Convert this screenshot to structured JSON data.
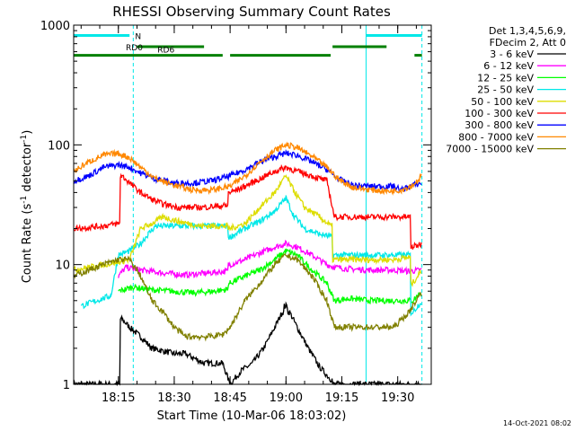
{
  "chart_data": {
    "type": "line",
    "title": "RHESSI Observing Summary Count Rates",
    "xlabel": "Start Time (10-Mar-06 18:03:02)",
    "ylabel": "Count Rate (s",
    "ylabel_sup1": "-1",
    "ylabel_mid": " detector",
    "ylabel_sup2": "-1",
    "ylabel_end": ")",
    "yscale": "log",
    "xlim_minutes": [
      0,
      96
    ],
    "ylim": [
      1,
      1000
    ],
    "x_ticks": [
      {
        "minute": 12,
        "label": "18:15"
      },
      {
        "minute": 27,
        "label": "18:30"
      },
      {
        "minute": 42,
        "label": "18:45"
      },
      {
        "minute": 57,
        "label": "19:00"
      },
      {
        "minute": 72,
        "label": "19:15"
      },
      {
        "minute": 87,
        "label": "19:30"
      }
    ],
    "y_ticks": [
      {
        "value": 1,
        "label": "1"
      },
      {
        "value": 10,
        "label": "10"
      },
      {
        "value": 100,
        "label": "100"
      },
      {
        "value": 1000,
        "label": "1000"
      }
    ],
    "legend_header": [
      "Det 1,3,4,5,6,9,",
      "FDecim 2, Att 0"
    ],
    "legend_position": "right",
    "footer_date": "14-Oct-2021 08:02",
    "flags": [
      {
        "name": "N",
        "color": "#00e8e8",
        "y": 820,
        "segments": [
          [
            0,
            15
          ],
          [
            78.5,
            93.5
          ]
        ]
      },
      {
        "name": "RD0",
        "color": "#008000",
        "y": 660,
        "segments": [
          [
            17,
            35
          ],
          [
            69.5,
            84
          ]
        ]
      },
      {
        "name": "RD6",
        "color": "#008000",
        "y": 560,
        "segments": [
          [
            0,
            40
          ],
          [
            42,
            69
          ],
          [
            91.5,
            93.5
          ]
        ]
      }
    ],
    "vlines": [
      {
        "minute": 0,
        "style": "solid",
        "color": "#00e8e8"
      },
      {
        "minute": 16,
        "style": "dashed",
        "color": "#00e8e8"
      },
      {
        "minute": 78.5,
        "style": "solid",
        "color": "#00e8e8"
      },
      {
        "minute": 93.5,
        "style": "dashed",
        "color": "#00e8e8"
      }
    ],
    "series": [
      {
        "name": "3 - 6 keV",
        "color": "#000000",
        "points": [
          [
            0,
            1
          ],
          [
            12,
            1
          ],
          [
            13,
            3.5
          ],
          [
            15,
            3
          ],
          [
            18,
            2.5
          ],
          [
            21,
            2
          ],
          [
            27,
            1.8
          ],
          [
            30,
            1.8
          ],
          [
            35,
            1.5
          ],
          [
            40,
            1.5
          ],
          [
            42,
            1
          ],
          [
            45,
            1.3
          ],
          [
            48,
            1.5
          ],
          [
            51,
            2
          ],
          [
            54,
            3
          ],
          [
            56,
            4
          ],
          [
            57,
            4.5
          ],
          [
            58,
            4
          ],
          [
            60,
            3
          ],
          [
            63,
            2
          ],
          [
            66,
            1.4
          ],
          [
            69,
            1.1
          ],
          [
            70,
            1
          ],
          [
            80,
            1
          ],
          [
            86,
            1
          ],
          [
            93.5,
            1
          ]
        ]
      },
      {
        "name": "6 - 12 keV",
        "color": "#ff00ff",
        "points": [
          [
            12,
            8
          ],
          [
            14,
            9.5
          ],
          [
            18,
            9
          ],
          [
            24,
            8.5
          ],
          [
            30,
            8.2
          ],
          [
            36,
            8.5
          ],
          [
            41,
            8.8
          ],
          [
            42,
            10
          ],
          [
            46,
            11
          ],
          [
            50,
            12.5
          ],
          [
            54,
            14
          ],
          [
            57,
            15
          ],
          [
            60,
            14
          ],
          [
            64,
            12
          ],
          [
            68,
            10
          ],
          [
            70,
            9.5
          ],
          [
            74,
            9.2
          ],
          [
            80,
            9
          ],
          [
            86,
            9
          ],
          [
            90,
            8.8
          ],
          [
            93.5,
            9
          ]
        ]
      },
      {
        "name": "12 - 25 keV",
        "color": "#00ff00",
        "points": [
          [
            12,
            6
          ],
          [
            16,
            6.5
          ],
          [
            20,
            6.2
          ],
          [
            26,
            6
          ],
          [
            32,
            5.8
          ],
          [
            38,
            6
          ],
          [
            41,
            6.2
          ],
          [
            42,
            7
          ],
          [
            46,
            8
          ],
          [
            50,
            9
          ],
          [
            54,
            11
          ],
          [
            57,
            13
          ],
          [
            60,
            12
          ],
          [
            64,
            9
          ],
          [
            68,
            7
          ],
          [
            70,
            5
          ],
          [
            74,
            5.2
          ],
          [
            80,
            5
          ],
          [
            86,
            5
          ],
          [
            91,
            5
          ],
          [
            93.5,
            6
          ]
        ]
      },
      {
        "name": "25 - 50 keV",
        "color": "#00e8e8",
        "points": [
          [
            2,
            4.5
          ],
          [
            10,
            5.5
          ],
          [
            12,
            12
          ],
          [
            15,
            13
          ],
          [
            18,
            15
          ],
          [
            20,
            18
          ],
          [
            22,
            21
          ],
          [
            26,
            21
          ],
          [
            32,
            21
          ],
          [
            38,
            21
          ],
          [
            41,
            21
          ],
          [
            42,
            17
          ],
          [
            46,
            20
          ],
          [
            50,
            23
          ],
          [
            54,
            28
          ],
          [
            57,
            36
          ],
          [
            59,
            26
          ],
          [
            62,
            20
          ],
          [
            66,
            18
          ],
          [
            69,
            17
          ],
          [
            70,
            12
          ],
          [
            74,
            12
          ],
          [
            80,
            12
          ],
          [
            86,
            12
          ],
          [
            90,
            12
          ],
          [
            91,
            4
          ],
          [
            93.5,
            5
          ]
        ]
      },
      {
        "name": "50 - 100 keV",
        "color": "#dddd00",
        "points": [
          [
            0,
            9
          ],
          [
            8,
            10
          ],
          [
            12,
            10.5
          ],
          [
            15,
            11
          ],
          [
            18,
            20
          ],
          [
            21,
            22
          ],
          [
            24,
            25
          ],
          [
            28,
            23
          ],
          [
            34,
            21
          ],
          [
            40,
            21
          ],
          [
            41,
            21
          ],
          [
            42,
            20
          ],
          [
            46,
            22
          ],
          [
            50,
            30
          ],
          [
            54,
            40
          ],
          [
            57,
            55
          ],
          [
            59,
            42
          ],
          [
            62,
            30
          ],
          [
            66,
            25
          ],
          [
            69,
            21
          ],
          [
            70,
            11
          ],
          [
            74,
            11
          ],
          [
            80,
            11
          ],
          [
            86,
            11
          ],
          [
            90,
            11.5
          ],
          [
            91,
            7
          ],
          [
            93.5,
            9
          ]
        ]
      },
      {
        "name": "100 - 300 keV",
        "color": "#ff0000",
        "points": [
          [
            0,
            20
          ],
          [
            8,
            21
          ],
          [
            12,
            22
          ],
          [
            13,
            55
          ],
          [
            16,
            45
          ],
          [
            18,
            40
          ],
          [
            21,
            35
          ],
          [
            24,
            32
          ],
          [
            28,
            30
          ],
          [
            34,
            30
          ],
          [
            40,
            31
          ],
          [
            41,
            31
          ],
          [
            42,
            40
          ],
          [
            46,
            45
          ],
          [
            50,
            52
          ],
          [
            54,
            60
          ],
          [
            57,
            65
          ],
          [
            60,
            60
          ],
          [
            64,
            55
          ],
          [
            68,
            50
          ],
          [
            70,
            25
          ],
          [
            74,
            25
          ],
          [
            80,
            25
          ],
          [
            86,
            25
          ],
          [
            90,
            25
          ],
          [
            91,
            14
          ],
          [
            93.5,
            15
          ]
        ]
      },
      {
        "name": "300 - 800 keV",
        "color": "#0000ff",
        "points": [
          [
            0,
            50
          ],
          [
            4,
            55
          ],
          [
            8,
            65
          ],
          [
            12,
            68
          ],
          [
            15,
            65
          ],
          [
            18,
            58
          ],
          [
            22,
            52
          ],
          [
            27,
            48
          ],
          [
            32,
            48
          ],
          [
            37,
            50
          ],
          [
            42,
            55
          ],
          [
            46,
            62
          ],
          [
            50,
            72
          ],
          [
            54,
            80
          ],
          [
            57,
            85
          ],
          [
            60,
            82
          ],
          [
            64,
            72
          ],
          [
            68,
            62
          ],
          [
            71,
            52
          ],
          [
            75,
            46
          ],
          [
            80,
            45
          ],
          [
            84,
            45
          ],
          [
            86,
            45
          ],
          [
            88,
            42
          ],
          [
            91,
            46
          ],
          [
            93.5,
            48
          ]
        ]
      },
      {
        "name": "800 - 7000 keV",
        "color": "#ff8800",
        "points": [
          [
            0,
            60
          ],
          [
            4,
            72
          ],
          [
            8,
            82
          ],
          [
            12,
            85
          ],
          [
            15,
            78
          ],
          [
            18,
            65
          ],
          [
            22,
            52
          ],
          [
            27,
            46
          ],
          [
            32,
            42
          ],
          [
            37,
            42
          ],
          [
            42,
            45
          ],
          [
            46,
            55
          ],
          [
            50,
            72
          ],
          [
            54,
            90
          ],
          [
            57,
            100
          ],
          [
            60,
            95
          ],
          [
            64,
            80
          ],
          [
            68,
            65
          ],
          [
            71,
            52
          ],
          [
            75,
            44
          ],
          [
            80,
            42
          ],
          [
            84,
            41
          ],
          [
            88,
            42
          ],
          [
            91,
            46
          ],
          [
            93.5,
            55
          ]
        ]
      },
      {
        "name": "7000 - 15000 keV",
        "color": "#808000",
        "points": [
          [
            0,
            8
          ],
          [
            4,
            9
          ],
          [
            8,
            10
          ],
          [
            12,
            11
          ],
          [
            15,
            11
          ],
          [
            18,
            8
          ],
          [
            21,
            5
          ],
          [
            24,
            4
          ],
          [
            27,
            3
          ],
          [
            30,
            2.5
          ],
          [
            36,
            2.5
          ],
          [
            40,
            2.6
          ],
          [
            42,
            3
          ],
          [
            46,
            5
          ],
          [
            50,
            7
          ],
          [
            54,
            10
          ],
          [
            57,
            12
          ],
          [
            60,
            11
          ],
          [
            64,
            8
          ],
          [
            68,
            5
          ],
          [
            70,
            3
          ],
          [
            74,
            3
          ],
          [
            78,
            3
          ],
          [
            82,
            3
          ],
          [
            86,
            3
          ],
          [
            90,
            4
          ],
          [
            93.5,
            6
          ]
        ]
      }
    ]
  }
}
